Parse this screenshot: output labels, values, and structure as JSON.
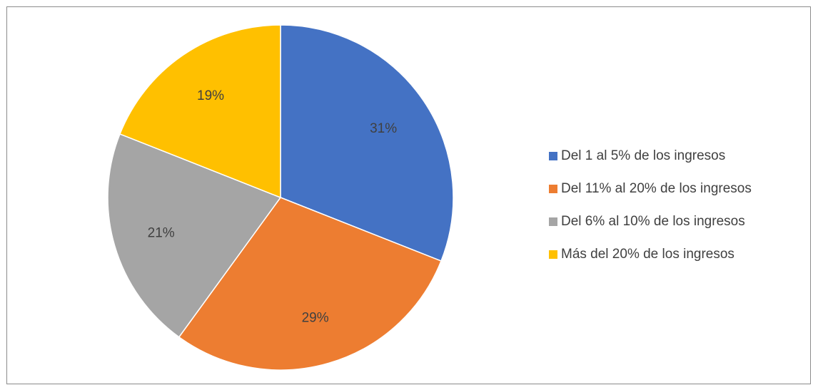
{
  "chart_data": {
    "type": "pie",
    "title": "",
    "slices": [
      {
        "label": "Del 1 al 5% de los ingresos",
        "value": 31,
        "display": "31%",
        "color": "#4472C4"
      },
      {
        "label": "Del 11% al 20% de los ingresos",
        "value": 29,
        "display": "29%",
        "color": "#ED7D31"
      },
      {
        "label": "Del 6% al 10% de los ingresos",
        "value": 21,
        "display": "21%",
        "color": "#A5A5A5"
      },
      {
        "label": "Más del 20% de los ingresos",
        "value": 19,
        "display": "19%",
        "color": "#FFC000"
      }
    ],
    "legend_position": "right"
  }
}
